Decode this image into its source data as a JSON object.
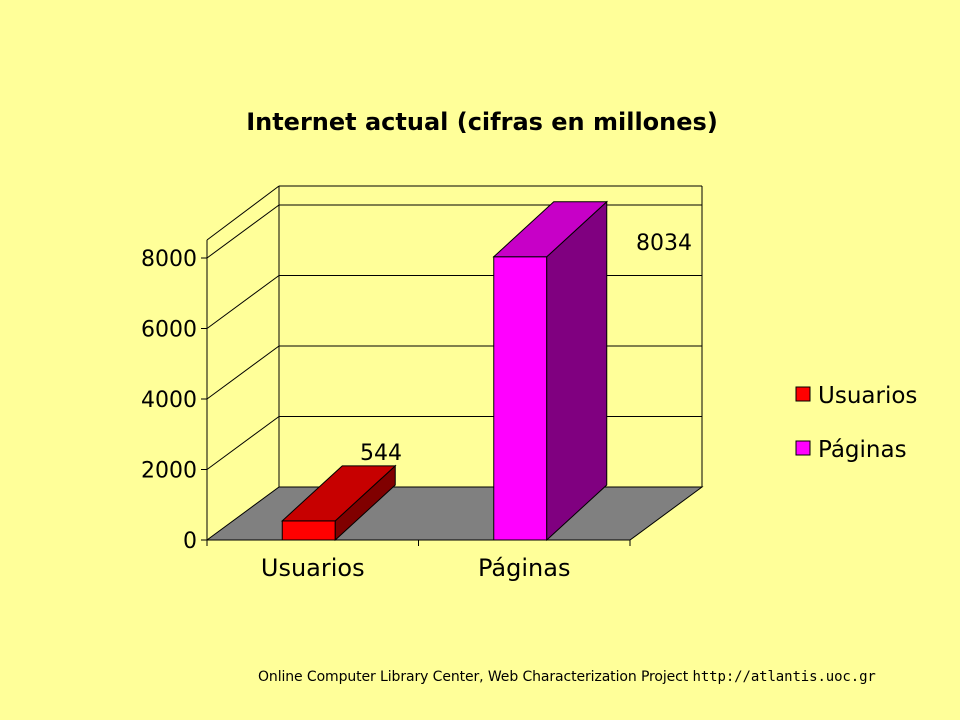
{
  "chart_data": {
    "type": "bar",
    "title": "Internet actual (cifras en millones)",
    "categories": [
      "Usuarios",
      "Páginas"
    ],
    "values": [
      544,
      8034
    ],
    "data_labels": [
      "544",
      "8034"
    ],
    "colors": [
      "#FF0000",
      "#FF00FF"
    ],
    "y_ticks": [
      "0",
      "2000",
      "4000",
      "6000",
      "8000"
    ],
    "ylim": [
      0,
      8000
    ],
    "legend": {
      "position": "right",
      "entries": [
        "Usuarios",
        "Páginas"
      ]
    },
    "style": "3d"
  },
  "footer": {
    "source": "Online Computer Library Center, Web Characterization Project",
    "url": "http://atlantis.uoc.gr"
  }
}
